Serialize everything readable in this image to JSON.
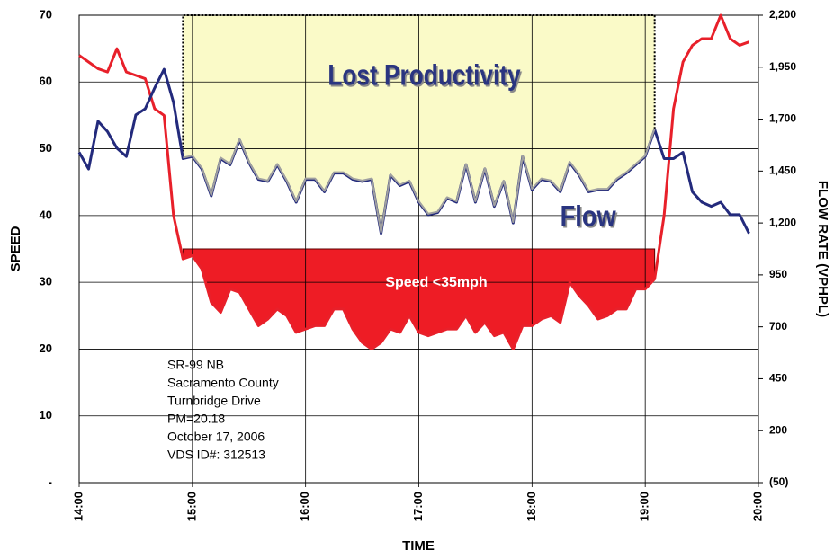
{
  "chart_data": {
    "type": "line",
    "x": [
      "14:00",
      "14:05",
      "14:10",
      "14:15",
      "14:20",
      "14:25",
      "14:30",
      "14:35",
      "14:40",
      "14:45",
      "14:50",
      "14:55",
      "15:00",
      "15:05",
      "15:10",
      "15:15",
      "15:20",
      "15:25",
      "15:30",
      "15:35",
      "15:40",
      "15:45",
      "15:50",
      "15:55",
      "16:00",
      "16:05",
      "16:10",
      "16:15",
      "16:20",
      "16:25",
      "16:30",
      "16:35",
      "16:40",
      "16:45",
      "16:50",
      "16:55",
      "17:00",
      "17:05",
      "17:10",
      "17:15",
      "17:20",
      "17:25",
      "17:30",
      "17:35",
      "17:40",
      "17:45",
      "17:50",
      "17:55",
      "18:00",
      "18:05",
      "18:10",
      "18:15",
      "18:20",
      "18:25",
      "18:30",
      "18:35",
      "18:40",
      "18:45",
      "18:50",
      "18:55",
      "19:00",
      "19:05",
      "19:10",
      "19:15",
      "19:20",
      "19:25",
      "19:30",
      "19:35",
      "19:40",
      "19:45",
      "19:50",
      "19:55"
    ],
    "series": [
      {
        "color": "#e8202a",
        "values": [
          64,
          63,
          62,
          61.5,
          65,
          61.5,
          61,
          60.5,
          56,
          55,
          40,
          33.5,
          34,
          32,
          27,
          25.5,
          29,
          28.5,
          26,
          23.5,
          24.5,
          26,
          25,
          22.5,
          23,
          23.5,
          23.5,
          26,
          26,
          23,
          21,
          20,
          21,
          23,
          22.5,
          25,
          22.5,
          22,
          22.5,
          23,
          23,
          25,
          22.5,
          24,
          22,
          22.5,
          20,
          23.5,
          23.5,
          24.5,
          25,
          24,
          30,
          28,
          26.5,
          24.5,
          25,
          26,
          26,
          29,
          29,
          30.5,
          40,
          56,
          63,
          65.5,
          66.5,
          66.5,
          70,
          66.5,
          65.5,
          66
        ]
      },
      {
        "name": "Flow",
        "color": "#232a7c",
        "axis": "y2",
        "values": [
          1540,
          1460,
          1690,
          1640,
          1560,
          1520,
          1720,
          1750,
          1850,
          1940,
          1780,
          1510,
          1520,
          1460,
          1330,
          1510,
          1480,
          1600,
          1490,
          1410,
          1400,
          1480,
          1400,
          1300,
          1410,
          1410,
          1350,
          1440,
          1440,
          1410,
          1400,
          1410,
          1150,
          1430,
          1380,
          1400,
          1300,
          1240,
          1250,
          1320,
          1300,
          1480,
          1300,
          1460,
          1280,
          1400,
          1200,
          1520,
          1360,
          1410,
          1400,
          1350,
          1490,
          1430,
          1350,
          1360,
          1360,
          1410,
          1440,
          1480,
          1520,
          1650,
          1510,
          1510,
          1540,
          1350,
          1300,
          1280,
          1300,
          1240,
          1240,
          1150
        ]
      }
    ],
    "threshold": 35,
    "xlim": [
      "14:00",
      "20:00"
    ],
    "xticks": [
      "14:00",
      "15:00",
      "16:00",
      "17:00",
      "18:00",
      "19:00",
      "20:00"
    ],
    "ylim": [
      0,
      70
    ],
    "yticks": [
      {
        "value": 0,
        "label": "-"
      },
      10,
      20,
      30,
      40,
      50,
      60,
      70
    ],
    "y2lim": [
      -50,
      2200
    ],
    "y2ticks": [
      {
        "value": -50,
        "label": "(50)"
      },
      200,
      450,
      700,
      950,
      {
        "value": 1200,
        "label": "1,200"
      },
      {
        "value": 1450,
        "label": "1,450"
      },
      {
        "value": 1700,
        "label": "1,700"
      },
      {
        "value": 1950,
        "label": "1,950"
      },
      {
        "value": 2200,
        "label": "2,200"
      }
    ],
    "xlabel": "TIME",
    "ylabel": "SPEED",
    "y2label": "FLOW RATE (VPHPL)",
    "annotations": {
      "lost": "Lost Productivity",
      "speed": "Speed <35mph"
    },
    "note_lines": [
      "SR-99 NB",
      "Sacramento County",
      "Turnbridge Drive",
      "PM=20.18",
      "October 17, 2006",
      "VDS ID#: 312513"
    ],
    "grid": true
  }
}
